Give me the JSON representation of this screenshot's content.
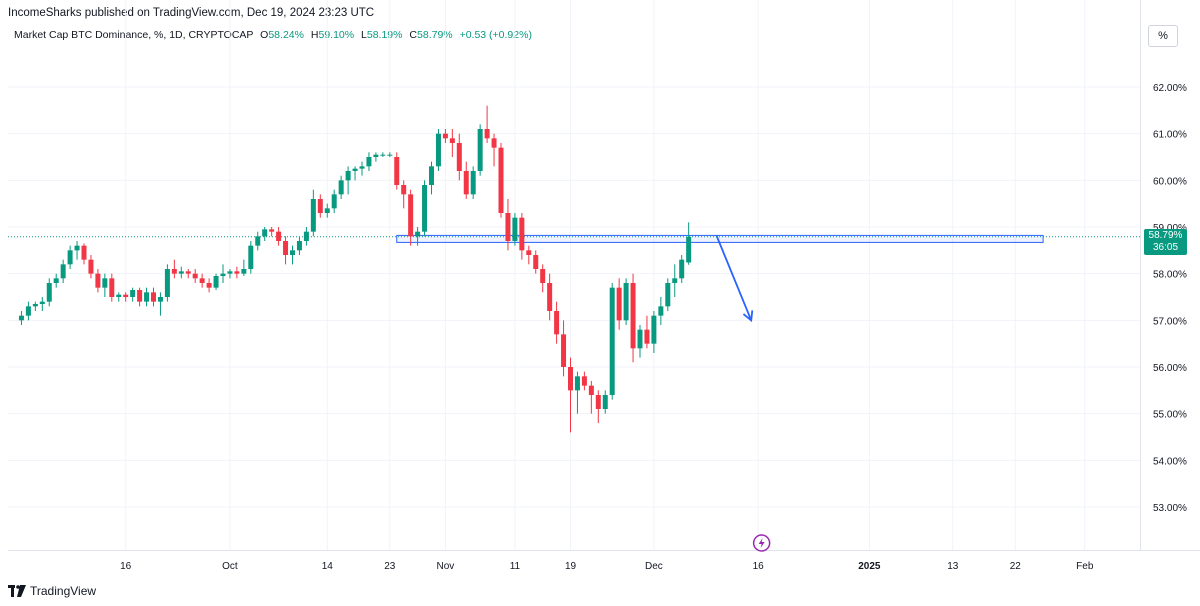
{
  "header": {
    "published": "IncomeSharks published on TradingView.com, Dec 19, 2024 23:23 UTC"
  },
  "legend": {
    "symbol": "Market Cap BTC Dominance, %, 1D, CRYPTOCAP",
    "o_label": "O",
    "o_value": "58.24%",
    "h_label": "H",
    "h_value": "59.10%",
    "l_label": "L",
    "l_value": "58.19%",
    "c_label": "C",
    "c_value": "58.79%",
    "change": "+0.53 (+0.92%)"
  },
  "unit_button": "%",
  "price_tag": {
    "value": "58.79%",
    "countdown": "36:05"
  },
  "footer": {
    "brand": "TradingView"
  },
  "colors": {
    "up": "#089981",
    "down": "#F23645",
    "grid": "#f0f3fa",
    "annotation": "#2962FF"
  },
  "chart_data": {
    "type": "candlestick",
    "title": "Market Cap BTC Dominance, %, 1D, CRYPTOCAP",
    "ylim": [
      52.3,
      62.6
    ],
    "y_ticks": [
      "53.00%",
      "54.00%",
      "55.00%",
      "56.00%",
      "57.00%",
      "58.00%",
      "59.00%",
      "60.00%",
      "61.00%",
      "62.00%"
    ],
    "x_ticks": [
      {
        "label": "16",
        "day": 16
      },
      {
        "label": "Oct",
        "day": 31
      },
      {
        "label": "14",
        "day": 45
      },
      {
        "label": "23",
        "day": 54
      },
      {
        "label": "Nov",
        "day": 62
      },
      {
        "label": "11",
        "day": 72
      },
      {
        "label": "19",
        "day": 80
      },
      {
        "label": "Dec",
        "day": 92
      },
      {
        "label": "16",
        "day": 107
      },
      {
        "label": "2025",
        "day": 123
      },
      {
        "label": "13",
        "day": 135
      },
      {
        "label": "22",
        "day": 144
      },
      {
        "label": "Feb",
        "day": 154
      }
    ],
    "candles": [
      [
        57.0,
        57.2,
        56.9,
        57.1
      ],
      [
        57.1,
        57.4,
        57.0,
        57.3
      ],
      [
        57.3,
        57.4,
        57.2,
        57.35
      ],
      [
        57.35,
        57.5,
        57.2,
        57.4
      ],
      [
        57.4,
        57.9,
        57.3,
        57.8
      ],
      [
        57.8,
        58.0,
        57.7,
        57.9
      ],
      [
        57.9,
        58.3,
        57.8,
        58.2
      ],
      [
        58.2,
        58.6,
        58.1,
        58.5
      ],
      [
        58.5,
        58.7,
        58.3,
        58.6
      ],
      [
        58.6,
        58.65,
        58.2,
        58.3
      ],
      [
        58.3,
        58.4,
        57.9,
        58.0
      ],
      [
        58.0,
        58.1,
        57.6,
        57.7
      ],
      [
        57.7,
        58.0,
        57.5,
        57.9
      ],
      [
        57.9,
        58.0,
        57.4,
        57.5
      ],
      [
        57.5,
        57.6,
        57.4,
        57.55
      ],
      [
        57.55,
        57.6,
        57.4,
        57.5
      ],
      [
        57.5,
        57.7,
        57.4,
        57.65
      ],
      [
        57.65,
        57.7,
        57.3,
        57.4
      ],
      [
        57.4,
        57.7,
        57.3,
        57.6
      ],
      [
        57.6,
        57.7,
        57.3,
        57.4
      ],
      [
        57.4,
        57.6,
        57.1,
        57.5
      ],
      [
        57.5,
        58.2,
        57.4,
        58.1
      ],
      [
        58.1,
        58.3,
        57.9,
        58.0
      ],
      [
        58.0,
        58.15,
        57.9,
        58.05
      ],
      [
        58.05,
        58.1,
        57.9,
        58.0
      ],
      [
        58.0,
        58.1,
        57.8,
        57.9
      ],
      [
        57.9,
        58.0,
        57.7,
        57.8
      ],
      [
        57.8,
        57.9,
        57.6,
        57.7
      ],
      [
        57.7,
        58.0,
        57.65,
        57.95
      ],
      [
        57.95,
        58.2,
        57.8,
        58.0
      ],
      [
        58.0,
        58.1,
        57.9,
        58.05
      ],
      [
        58.05,
        58.15,
        57.9,
        58.0
      ],
      [
        58.0,
        58.3,
        57.95,
        58.1
      ],
      [
        58.1,
        58.7,
        58.0,
        58.6
      ],
      [
        58.6,
        58.9,
        58.5,
        58.8
      ],
      [
        58.8,
        59.0,
        58.7,
        58.95
      ],
      [
        58.95,
        59.0,
        58.8,
        58.9
      ],
      [
        58.9,
        59.0,
        58.6,
        58.7
      ],
      [
        58.7,
        58.8,
        58.2,
        58.4
      ],
      [
        58.4,
        58.6,
        58.2,
        58.5
      ],
      [
        58.5,
        58.8,
        58.4,
        58.7
      ],
      [
        58.7,
        59.0,
        58.6,
        58.9
      ],
      [
        58.9,
        59.8,
        58.8,
        59.6
      ],
      [
        59.6,
        59.7,
        59.2,
        59.3
      ],
      [
        59.3,
        59.5,
        59.2,
        59.4
      ],
      [
        59.4,
        59.8,
        59.3,
        59.7
      ],
      [
        59.7,
        60.1,
        59.6,
        60.0
      ],
      [
        60.0,
        60.3,
        59.7,
        60.2
      ],
      [
        60.2,
        60.3,
        60.0,
        60.25
      ],
      [
        60.25,
        60.4,
        60.1,
        60.3
      ],
      [
        60.3,
        60.6,
        60.2,
        60.5
      ],
      [
        60.5,
        60.6,
        60.4,
        60.55
      ],
      [
        60.55,
        60.6,
        60.5,
        60.55
      ],
      [
        60.55,
        60.6,
        60.5,
        60.55
      ],
      [
        60.5,
        60.6,
        59.8,
        59.9
      ],
      [
        59.9,
        60.0,
        59.4,
        59.7
      ],
      [
        59.7,
        59.8,
        58.6,
        58.8
      ],
      [
        58.8,
        59.0,
        58.6,
        58.9
      ],
      [
        58.9,
        60.0,
        58.8,
        59.9
      ],
      [
        59.9,
        60.4,
        59.7,
        60.3
      ],
      [
        60.3,
        61.1,
        60.2,
        61.0
      ],
      [
        61.0,
        61.1,
        60.8,
        60.9
      ],
      [
        60.9,
        61.1,
        60.5,
        60.8
      ],
      [
        60.8,
        61.0,
        60.0,
        60.2
      ],
      [
        60.2,
        60.4,
        59.6,
        59.7
      ],
      [
        59.7,
        60.3,
        59.6,
        60.2
      ],
      [
        60.2,
        61.2,
        60.1,
        61.1
      ],
      [
        61.1,
        61.6,
        60.8,
        60.9
      ],
      [
        60.9,
        61.0,
        60.3,
        60.7
      ],
      [
        60.7,
        60.8,
        59.2,
        59.3
      ],
      [
        59.3,
        59.6,
        58.5,
        58.7
      ],
      [
        58.7,
        59.3,
        58.6,
        59.2
      ],
      [
        59.2,
        59.3,
        58.3,
        58.5
      ],
      [
        58.5,
        58.6,
        58.2,
        58.4
      ],
      [
        58.4,
        58.5,
        58.0,
        58.1
      ],
      [
        58.1,
        58.2,
        57.6,
        57.8
      ],
      [
        57.8,
        58.0,
        57.0,
        57.2
      ],
      [
        57.2,
        57.4,
        56.5,
        56.7
      ],
      [
        56.7,
        57.0,
        55.8,
        56.0
      ],
      [
        56.0,
        56.2,
        54.6,
        55.5
      ],
      [
        55.5,
        55.9,
        55.0,
        55.8
      ],
      [
        55.8,
        55.9,
        55.5,
        55.6
      ],
      [
        55.6,
        55.7,
        55.0,
        55.4
      ],
      [
        55.4,
        55.5,
        54.8,
        55.1
      ],
      [
        55.1,
        55.5,
        55.0,
        55.4
      ],
      [
        55.4,
        57.8,
        55.3,
        57.7
      ],
      [
        57.7,
        57.9,
        56.8,
        57.0
      ],
      [
        57.0,
        57.9,
        56.9,
        57.8
      ],
      [
        57.8,
        58.0,
        56.1,
        56.4
      ],
      [
        56.4,
        56.9,
        56.2,
        56.8
      ],
      [
        56.8,
        57.1,
        56.4,
        56.5
      ],
      [
        56.5,
        57.2,
        56.3,
        57.1
      ],
      [
        57.1,
        57.5,
        56.9,
        57.3
      ],
      [
        57.3,
        57.9,
        57.2,
        57.8
      ],
      [
        57.8,
        58.2,
        57.5,
        57.9
      ],
      [
        57.9,
        58.4,
        57.8,
        58.3
      ],
      [
        58.24,
        59.1,
        58.19,
        58.79
      ]
    ],
    "candle_start_day": 1,
    "series_last_close": 58.79,
    "annotations": [
      {
        "type": "rectangle",
        "x_start_day": 55,
        "x_end_day": 148,
        "y_top": 58.82,
        "y_bottom": 58.67
      },
      {
        "type": "arrow",
        "from": [
          101,
          58.82
        ],
        "to": [
          106,
          57.0
        ]
      }
    ]
  }
}
